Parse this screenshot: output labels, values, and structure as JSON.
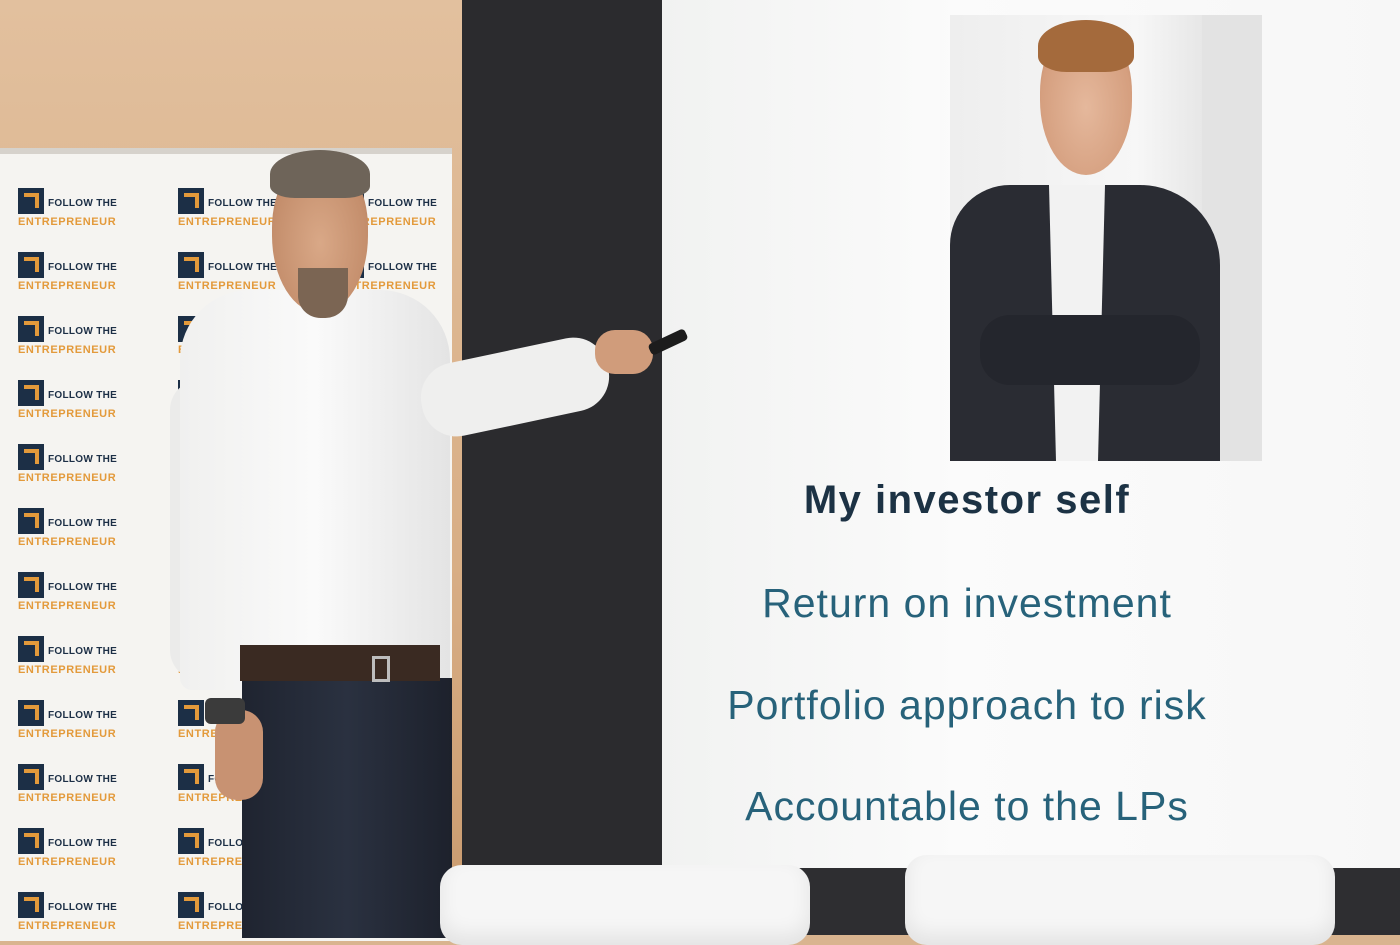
{
  "banner": {
    "logo_line1": "FOLLOW THE",
    "logo_line2": "ENTREPRENEUR",
    "colors": {
      "navy": "#1c2f46",
      "orange": "#e39a3b"
    }
  },
  "slide": {
    "title": "My investor self",
    "points": [
      "Return on investment",
      "Portfolio approach to risk",
      "Accountable to the LPs"
    ],
    "text_color": "#27627a"
  }
}
